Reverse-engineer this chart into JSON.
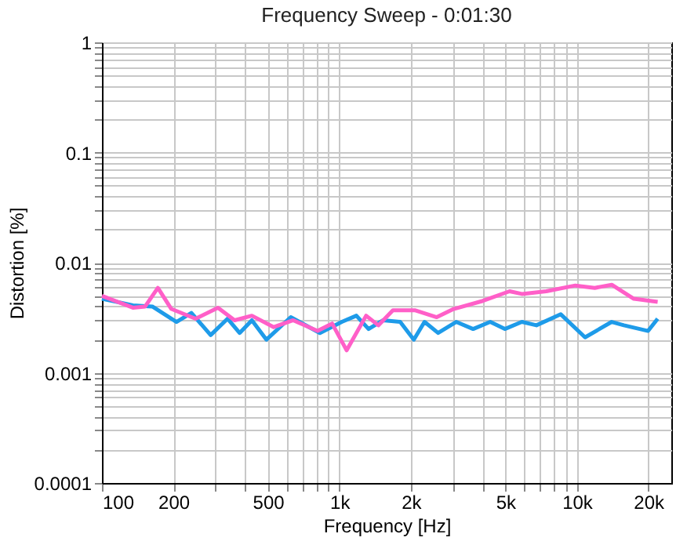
{
  "chart_data": {
    "type": "line",
    "title": "Frequency Sweep - 0:01:30",
    "xlabel": "Frequency [Hz]",
    "ylabel": "Distortion [%]",
    "log": "xy",
    "grid": true,
    "marker": "none",
    "line_style": "solid",
    "xlim": [
      100,
      25000
    ],
    "ylim": [
      0.0001,
      1
    ],
    "xticks": [
      100,
      200,
      {
        "value": 300,
        "label": null
      },
      {
        "value": 400,
        "label": null
      },
      500,
      {
        "value": 600,
        "label": null
      },
      {
        "value": 700,
        "label": null
      },
      {
        "value": 800,
        "label": null
      },
      {
        "value": 900,
        "label": null
      },
      {
        "value": 1000,
        "label": "1k"
      },
      {
        "value": 2000,
        "label": "2k"
      },
      {
        "value": 3000,
        "label": null
      },
      {
        "value": 4000,
        "label": null
      },
      {
        "value": 5000,
        "label": "5k"
      },
      {
        "value": 6000,
        "label": null
      },
      {
        "value": 7000,
        "label": null
      },
      {
        "value": 8000,
        "label": null
      },
      {
        "value": 9000,
        "label": null
      },
      {
        "value": 10000,
        "label": "10k"
      },
      {
        "value": 20000,
        "label": "20k"
      }
    ],
    "yticks": [
      0.0001,
      {
        "value": 0.0002,
        "label": null
      },
      {
        "value": 0.0003,
        "label": null
      },
      {
        "value": 0.0004,
        "label": null
      },
      {
        "value": 0.0005,
        "label": null
      },
      {
        "value": 0.0006,
        "label": null
      },
      {
        "value": 0.0007,
        "label": null
      },
      {
        "value": 0.0008,
        "label": null
      },
      {
        "value": 0.0009,
        "label": null
      },
      0.001,
      {
        "value": 0.002,
        "label": null
      },
      {
        "value": 0.003,
        "label": null
      },
      {
        "value": 0.004,
        "label": null
      },
      {
        "value": 0.005,
        "label": null
      },
      {
        "value": 0.006,
        "label": null
      },
      {
        "value": 0.007,
        "label": null
      },
      {
        "value": 0.008,
        "label": null
      },
      {
        "value": 0.009,
        "label": null
      },
      0.01,
      {
        "value": 0.02,
        "label": null
      },
      {
        "value": 0.03,
        "label": null
      },
      {
        "value": 0.04,
        "label": null
      },
      {
        "value": 0.05,
        "label": null
      },
      {
        "value": 0.06,
        "label": null
      },
      {
        "value": 0.07,
        "label": null
      },
      {
        "value": 0.08,
        "label": null
      },
      {
        "value": 0.09,
        "label": null
      },
      0.1,
      {
        "value": 0.2,
        "label": null
      },
      {
        "value": 0.3,
        "label": null
      },
      {
        "value": 0.4,
        "label": null
      },
      {
        "value": 0.5,
        "label": null
      },
      {
        "value": 0.6,
        "label": null
      },
      {
        "value": 0.7,
        "label": null
      },
      {
        "value": 0.8,
        "label": null
      },
      {
        "value": 0.9,
        "label": null
      },
      1
    ],
    "series": [
      {
        "color": "#1e9be9",
        "x": [
          100,
          135,
          163,
          206,
          238,
          287,
          338,
          380,
          428,
          493,
          624,
          828,
          1024,
          1179,
          1327,
          1529,
          1803,
          2058,
          2283,
          2605,
          3103,
          3658,
          4317,
          4974,
          5870,
          6758,
          8559,
          10832,
          14030,
          15786,
          19960,
          21900
        ],
        "values": [
          0.0047,
          0.0041,
          0.004,
          0.0029,
          0.0035,
          0.0022,
          0.0031,
          0.0023,
          0.003,
          0.002,
          0.0032,
          0.0023,
          0.0029,
          0.0033,
          0.0025,
          0.003,
          0.0029,
          0.002,
          0.0029,
          0.0023,
          0.0029,
          0.0025,
          0.0029,
          0.0025,
          0.0029,
          0.0027,
          0.0034,
          0.0021,
          0.0029,
          0.0027,
          0.0024,
          0.0031
        ]
      },
      {
        "color": "#ff5fc8",
        "x": [
          100,
          135,
          152,
          172,
          196,
          248,
          308,
          362,
          428,
          529,
          639,
          809,
          932,
          1073,
          1296,
          1459,
          1680,
          2077,
          2570,
          3029,
          4022,
          5210,
          5870,
          7436,
          9857,
          11900,
          14030,
          17380,
          21900
        ],
        "values": [
          0.005,
          0.0039,
          0.004,
          0.0059,
          0.0038,
          0.0031,
          0.0039,
          0.003,
          0.0033,
          0.0026,
          0.003,
          0.0024,
          0.0028,
          0.0016,
          0.0033,
          0.0027,
          0.0037,
          0.0037,
          0.0032,
          0.0038,
          0.0045,
          0.0055,
          0.0052,
          0.0055,
          0.0062,
          0.0059,
          0.0063,
          0.0047,
          0.0044
        ]
      }
    ]
  }
}
